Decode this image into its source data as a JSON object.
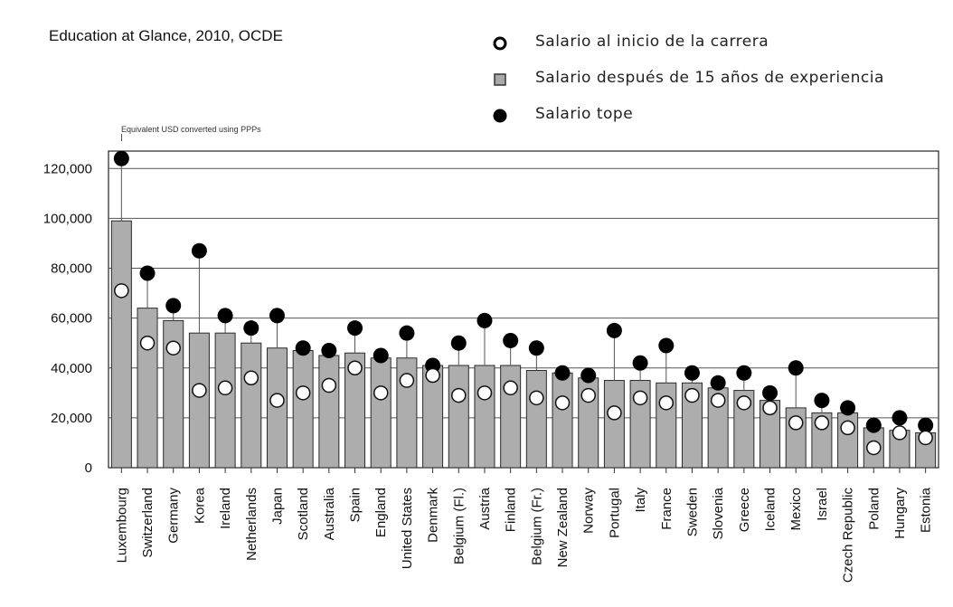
{
  "source_title": "Education at Glance, 2010, OCDE",
  "note": "Equivalent USD converted using PPPs",
  "legend": [
    {
      "label": "Salario al inicio de la carrera",
      "icon": "open-circle"
    },
    {
      "label": "Salario después de 15 años de experiencia",
      "icon": "gray-square"
    },
    {
      "label": "Salario tope",
      "icon": "filled-circle"
    }
  ],
  "chart_data": {
    "type": "bar",
    "ylim": [
      0,
      120000
    ],
    "yticks": [
      0,
      20000,
      40000,
      60000,
      80000,
      100000,
      120000
    ],
    "ytick_labels": [
      "0",
      "20,000",
      "40,000",
      "60,000",
      "80,000",
      "100,000",
      "120,000"
    ],
    "grid": true,
    "categories": [
      "Luxembourg",
      "Switzerland",
      "Germany",
      "Korea",
      "Ireland",
      "Netherlands",
      "Japan",
      "Scotland",
      "Australia",
      "Spain",
      "England",
      "United States",
      "Denmark",
      "Belgium (Fl.)",
      "Austria",
      "Finland",
      "Belgium (Fr.)",
      "New Zealand",
      "Norway",
      "Portugal",
      "Italy",
      "France",
      "Sweden",
      "Slovenia",
      "Greece",
      "Iceland",
      "Mexico",
      "Israel",
      "Czech Republic",
      "Poland",
      "Hungary",
      "Estonia"
    ],
    "series": [
      {
        "name": "Salario después de 15 años de experiencia",
        "values": [
          99000,
          64000,
          59000,
          54000,
          54000,
          50000,
          48000,
          47000,
          45000,
          46000,
          44000,
          44000,
          41000,
          41000,
          41000,
          41000,
          39000,
          38000,
          36000,
          35000,
          35000,
          34000,
          34000,
          32000,
          31000,
          27000,
          24000,
          22000,
          22000,
          16000,
          15000,
          14000
        ]
      },
      {
        "name": "Salario al inicio de la carrera",
        "values": [
          71000,
          50000,
          48000,
          31000,
          32000,
          36000,
          27000,
          30000,
          33000,
          40000,
          30000,
          35000,
          37000,
          29000,
          30000,
          32000,
          28000,
          26000,
          29000,
          22000,
          28000,
          26000,
          29000,
          27000,
          26000,
          24000,
          18000,
          18000,
          16000,
          8000,
          14000,
          12000
        ]
      },
      {
        "name": "Salario tope",
        "values": [
          124000,
          78000,
          65000,
          87000,
          61000,
          56000,
          61000,
          48000,
          47000,
          56000,
          45000,
          54000,
          41000,
          50000,
          59000,
          51000,
          48000,
          38000,
          37000,
          55000,
          42000,
          49000,
          38000,
          34000,
          38000,
          30000,
          40000,
          27000,
          24000,
          17000,
          20000,
          17000
        ]
      }
    ]
  }
}
